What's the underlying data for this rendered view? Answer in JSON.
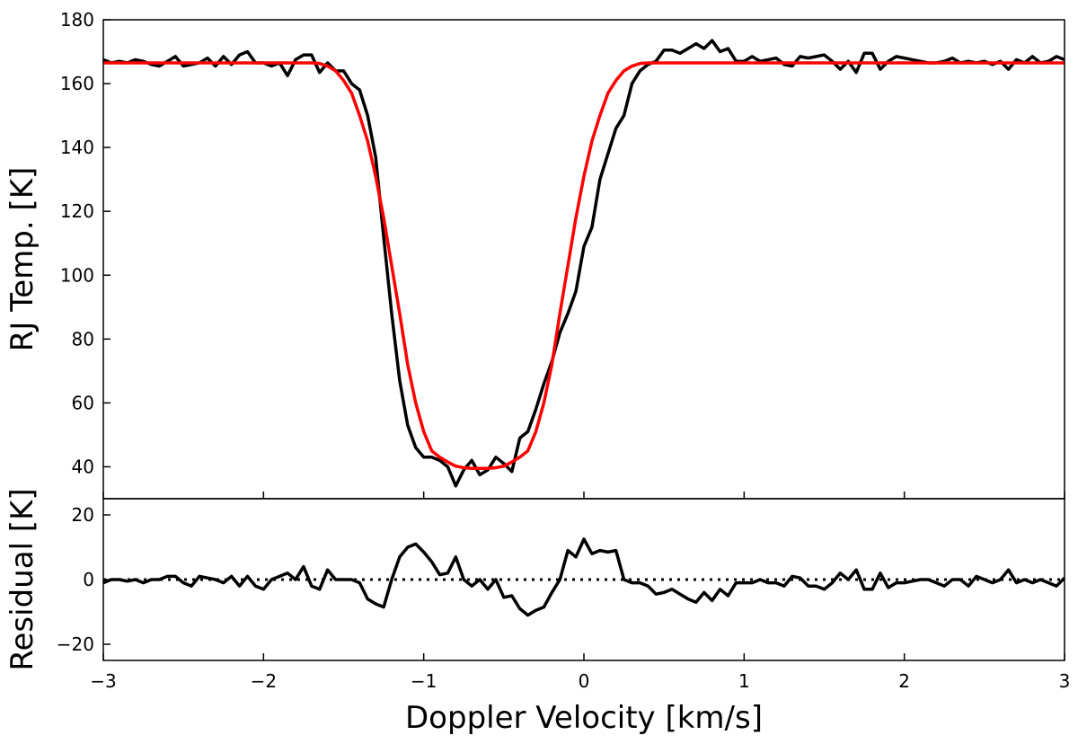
{
  "chart_data": [
    {
      "type": "line",
      "ylabel": "RJ Temp. [K]",
      "xlim": [
        -3,
        3
      ],
      "xticks": [
        -3,
        -2,
        -1,
        0,
        1,
        2,
        3
      ],
      "ylim": [
        30,
        180
      ],
      "yticks": [
        40,
        60,
        80,
        100,
        120,
        140,
        160,
        180
      ],
      "x": [
        -3,
        -2.95,
        -2.9,
        -2.85,
        -2.8,
        -2.75,
        -2.7,
        -2.65,
        -2.6,
        -2.55,
        -2.5,
        -2.45,
        -2.4,
        -2.35,
        -2.3,
        -2.25,
        -2.2,
        -2.15,
        -2.1,
        -2.05,
        -2,
        -1.95,
        -1.9,
        -1.85,
        -1.8,
        -1.75,
        -1.7,
        -1.65,
        -1.6,
        -1.55,
        -1.5,
        -1.45,
        -1.4,
        -1.35,
        -1.3,
        -1.25,
        -1.2,
        -1.15,
        -1.1,
        -1.05,
        -1,
        -0.95,
        -0.9,
        -0.85,
        -0.8,
        -0.75,
        -0.7,
        -0.65,
        -0.6,
        -0.55,
        -0.5,
        -0.45,
        -0.4,
        -0.35,
        -0.3,
        -0.25,
        -0.2,
        -0.15,
        -0.1,
        -0.05,
        0,
        0.05,
        0.1,
        0.15,
        0.2,
        0.25,
        0.3,
        0.35,
        0.4,
        0.45,
        0.5,
        0.55,
        0.6,
        0.65,
        0.7,
        0.75,
        0.8,
        0.85,
        0.9,
        0.95,
        1,
        1.05,
        1.1,
        1.15,
        1.2,
        1.25,
        1.3,
        1.35,
        1.4,
        1.45,
        1.5,
        1.55,
        1.6,
        1.65,
        1.7,
        1.75,
        1.8,
        1.85,
        1.9,
        1.95,
        2,
        2.05,
        2.1,
        2.15,
        2.2,
        2.25,
        2.3,
        2.35,
        2.4,
        2.45,
        2.5,
        2.55,
        2.6,
        2.65,
        2.7,
        2.75,
        2.8,
        2.85,
        2.9,
        2.95,
        3
      ],
      "series": [
        {
          "color": "#000000",
          "values": [
            167.5,
            166.5,
            167,
            166.5,
            167.5,
            167,
            166,
            165.5,
            167,
            168.5,
            165.5,
            166,
            166.5,
            168,
            165.5,
            168.5,
            166,
            169,
            170,
            166.5,
            166.5,
            165.5,
            166.5,
            162.5,
            167.5,
            169,
            169,
            163.5,
            166.5,
            164,
            164,
            160,
            158,
            150,
            137,
            112,
            88,
            67,
            53,
            46,
            43,
            43,
            42,
            40,
            34,
            39,
            42,
            37.5,
            39,
            43,
            41,
            38.5,
            49,
            51,
            58,
            66,
            73,
            82,
            88,
            95,
            109,
            115,
            130,
            138,
            146,
            150,
            160,
            164,
            166,
            167,
            170.5,
            170.5,
            169.5,
            171,
            172.5,
            171,
            173.5,
            170,
            171,
            167,
            167,
            168.5,
            167,
            167.5,
            168,
            166,
            165.5,
            168.5,
            168,
            168.5,
            169,
            167,
            164.5,
            167,
            163.5,
            169.5,
            169.5,
            164.5,
            167,
            168.5,
            168,
            167.5,
            167,
            166.5,
            166.5,
            167,
            168,
            166.5,
            167,
            166.5,
            167,
            166,
            167,
            164.5,
            167.5,
            166.5,
            168.5,
            166.5,
            167,
            168.5,
            167.5
          ]
        },
        {
          "color": "#ff0000",
          "values": [
            166.5,
            166.5,
            166.5,
            166.5,
            166.5,
            166.5,
            166.5,
            166.5,
            166.5,
            166.5,
            166.5,
            166.5,
            166.5,
            166.5,
            166.5,
            166.5,
            166.5,
            166.5,
            166.5,
            166.5,
            166.5,
            166.5,
            166.5,
            166.5,
            166.5,
            166.5,
            166.5,
            166.3,
            165.5,
            164,
            161,
            157,
            150,
            142,
            131,
            118,
            103,
            88,
            72,
            60,
            51,
            45,
            43,
            41.5,
            40.2,
            39.7,
            39.5,
            39.5,
            39.5,
            39.7,
            40.2,
            41.5,
            43,
            45,
            51,
            60,
            72,
            88,
            103,
            118,
            131,
            142,
            150,
            157,
            161,
            164,
            165.5,
            166.3,
            166.5,
            166.5,
            166.5,
            166.5,
            166.5,
            166.5,
            166.5,
            166.5,
            166.5,
            166.5,
            166.5,
            166.5,
            166.5,
            166.5,
            166.5,
            166.5,
            166.5,
            166.5,
            166.5,
            166.5,
            166.5,
            166.5,
            166.5,
            166.5,
            166.5,
            166.5,
            166.5,
            166.5,
            166.5,
            166.5,
            166.5,
            166.5,
            166.5,
            166.5,
            166.5,
            166.5,
            166.5,
            166.5,
            166.5,
            166.5,
            166.5,
            166.5,
            166.5,
            166.5,
            166.5,
            166.5,
            166.5,
            166.5,
            166.5,
            166.5,
            166.5,
            166.5,
            166.5
          ]
        }
      ]
    },
    {
      "type": "line",
      "ylabel": "Residual [K]",
      "xlabel": "Doppler Velocity [km/s]",
      "xlim": [
        -3,
        3
      ],
      "xticks": [
        {
          "value": -3,
          "label": "−3"
        },
        {
          "value": -2,
          "label": "−2"
        },
        {
          "value": -1,
          "label": "−1"
        },
        0,
        1,
        2,
        3
      ],
      "ylim": [
        -25,
        25
      ],
      "yticks": [
        {
          "value": -20,
          "label": "−20"
        },
        0,
        20
      ],
      "hline": 0,
      "x": [
        -3,
        -2.95,
        -2.9,
        -2.85,
        -2.8,
        -2.75,
        -2.7,
        -2.65,
        -2.6,
        -2.55,
        -2.5,
        -2.45,
        -2.4,
        -2.35,
        -2.3,
        -2.25,
        -2.2,
        -2.15,
        -2.1,
        -2.05,
        -2,
        -1.95,
        -1.9,
        -1.85,
        -1.8,
        -1.75,
        -1.7,
        -1.65,
        -1.6,
        -1.55,
        -1.5,
        -1.45,
        -1.4,
        -1.35,
        -1.3,
        -1.25,
        -1.2,
        -1.15,
        -1.1,
        -1.05,
        -1,
        -0.95,
        -0.9,
        -0.85,
        -0.8,
        -0.75,
        -0.7,
        -0.65,
        -0.6,
        -0.55,
        -0.5,
        -0.45,
        -0.4,
        -0.35,
        -0.3,
        -0.25,
        -0.2,
        -0.15,
        -0.1,
        -0.05,
        0,
        0.05,
        0.1,
        0.15,
        0.2,
        0.25,
        0.3,
        0.35,
        0.4,
        0.45,
        0.5,
        0.55,
        0.6,
        0.65,
        0.7,
        0.75,
        0.8,
        0.85,
        0.9,
        0.95,
        1,
        1.05,
        1.1,
        1.15,
        1.2,
        1.25,
        1.3,
        1.35,
        1.4,
        1.45,
        1.5,
        1.55,
        1.6,
        1.65,
        1.7,
        1.75,
        1.8,
        1.85,
        1.9,
        1.95,
        2,
        2.05,
        2.1,
        2.15,
        2.2,
        2.25,
        2.3,
        2.35,
        2.4,
        2.45,
        2.5,
        2.55,
        2.6,
        2.65,
        2.7,
        2.75,
        2.8,
        2.85,
        2.9,
        2.95,
        3
      ],
      "series": [
        {
          "color": "#000000",
          "values": [
            -1,
            0,
            0,
            -0.5,
            0,
            -1,
            0,
            0,
            1,
            1,
            -1,
            -2,
            1,
            0.5,
            0,
            -1,
            1,
            -2,
            1,
            -2,
            -3,
            0,
            1,
            2,
            0,
            4,
            -2,
            -3,
            3,
            0,
            0,
            0,
            -1,
            -6,
            -7.5,
            -8.5,
            0,
            7,
            10,
            11,
            8.5,
            5.5,
            1.5,
            2,
            7,
            0,
            -2,
            0,
            -3,
            0,
            -5.5,
            -5,
            -9,
            -11,
            -9.5,
            -8.5,
            -4,
            0,
            9,
            7,
            12.5,
            8,
            9,
            8.5,
            9,
            0,
            -1,
            -1,
            -2,
            -4.5,
            -4,
            -3,
            -4.5,
            -6,
            -7,
            -4,
            -6.5,
            -3,
            -5,
            -1,
            -1,
            -1,
            0,
            -1,
            -1,
            -2,
            1,
            0.5,
            -2,
            -2,
            -3,
            -1,
            2,
            0,
            3,
            -3,
            -3,
            2,
            -2.5,
            -1,
            -1,
            -0.5,
            0,
            0,
            -1,
            -2,
            0,
            0,
            -2,
            1,
            0,
            -1,
            0,
            3,
            -1,
            0,
            -1,
            0,
            -1,
            -2,
            0.5
          ]
        }
      ]
    }
  ]
}
